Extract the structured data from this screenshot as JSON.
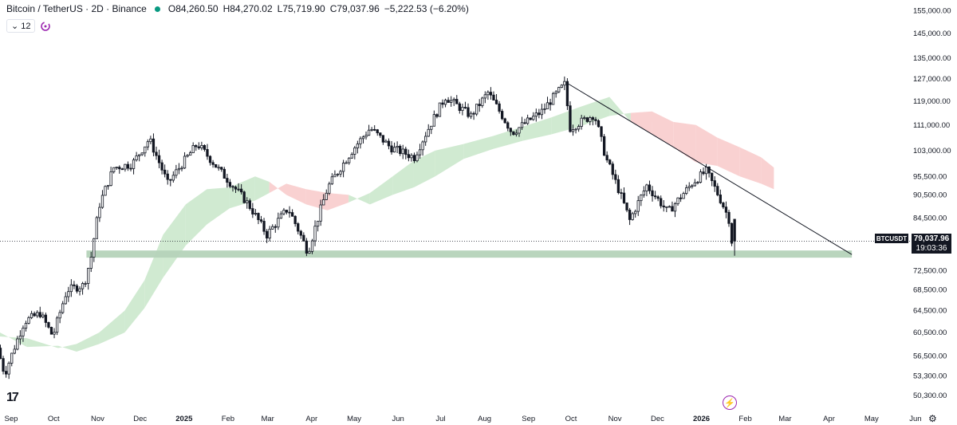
{
  "header": {
    "symbol": "Bitcoin / TetherUS · 2D · Binance",
    "open": "O84,260.50",
    "high": "H84,270.02",
    "low": "L75,719.90",
    "close": "C79,037.96",
    "change": "−5,222.53 (−6.20%)"
  },
  "indicator_toolbar": {
    "collapse_count": "12",
    "collapse_icon": "chevron-down-icon",
    "sync_icon": "refresh-icon"
  },
  "price_tag": {
    "symbol": "BTCUSDT",
    "price": "79,037.96",
    "countdown": "19:03:36"
  },
  "icons": {
    "logo": "tradingview-logo",
    "flash": "flash-icon",
    "settings": "gear-icon"
  },
  "colors": {
    "up": "#ffffff",
    "down": "#131722",
    "cloud_bull": "#c8e6c9",
    "cloud_bear": "#f8c9c9",
    "support_zone": "#b5d3b9",
    "trendline": "#131722",
    "accent": "#9c27b0"
  },
  "chart_data": {
    "type": "candlestick",
    "timeframe": "2D",
    "x_axis": {
      "tick_labels": [
        "Sep",
        "Oct",
        "Nov",
        "Dec",
        "2025",
        "Feb",
        "Mar",
        "Apr",
        "May",
        "Jun",
        "Jul",
        "Aug",
        "Sep",
        "Oct",
        "Nov",
        "Dec",
        "2026",
        "Feb",
        "Mar",
        "Apr",
        "May",
        "Jun"
      ],
      "range": [
        "2024-09-01",
        "2026-06-05"
      ]
    },
    "y_axis": {
      "scale": "log",
      "tick_labels": [
        "155,000.00",
        "145,000.00",
        "135,000.00",
        "127,000.00",
        "119,000.00",
        "111,000.00",
        "103,000.00",
        "95,500.00",
        "90,500.00",
        "84,500.00",
        "72,500.00",
        "68,500.00",
        "64,500.00",
        "60,500.00",
        "56,500.00",
        "53,300.00",
        "50,300.00"
      ],
      "ylim": [
        48700,
        160000
      ]
    },
    "price_anchors": [
      [
        "2024-09-01",
        57800
      ],
      [
        "2024-09-06",
        53500
      ],
      [
        "2024-09-20",
        62500
      ],
      [
        "2024-10-01",
        64000
      ],
      [
        "2024-10-10",
        59800
      ],
      [
        "2024-10-20",
        68500
      ],
      [
        "2024-11-01",
        69500
      ],
      [
        "2024-11-06",
        75500
      ],
      [
        "2024-11-12",
        88000
      ],
      [
        "2024-11-22",
        98000
      ],
      [
        "2024-12-05",
        99000
      ],
      [
        "2024-12-17",
        106500
      ],
      [
        "2024-12-30",
        93500
      ],
      [
        "2025-01-20",
        105000
      ],
      [
        "2025-02-05",
        97000
      ],
      [
        "2025-02-25",
        88000
      ],
      [
        "2025-03-10",
        80500
      ],
      [
        "2025-03-25",
        87000
      ],
      [
        "2025-04-08",
        76500
      ],
      [
        "2025-04-22",
        92500
      ],
      [
        "2025-05-10",
        103500
      ],
      [
        "2025-05-22",
        110000
      ],
      [
        "2025-06-05",
        104000
      ],
      [
        "2025-06-22",
        101000
      ],
      [
        "2025-07-14",
        120500
      ],
      [
        "2025-08-01",
        114000
      ],
      [
        "2025-08-13",
        122000
      ],
      [
        "2025-08-30",
        108500
      ],
      [
        "2025-09-20",
        115500
      ],
      [
        "2025-10-06",
        125000
      ],
      [
        "2025-10-10",
        110000
      ],
      [
        "2025-10-27",
        114500
      ],
      [
        "2025-11-04",
        101000
      ],
      [
        "2025-11-21",
        84000
      ],
      [
        "2025-12-03",
        93000
      ],
      [
        "2025-12-18",
        86000
      ],
      [
        "2026-01-05",
        94000
      ],
      [
        "2026-01-14",
        97000
      ],
      [
        "2026-01-25",
        88500
      ],
      [
        "2026-01-30",
        84260
      ],
      [
        "2026-02-01",
        79038
      ]
    ],
    "last_candle": {
      "open": 84260.5,
      "high": 84270.02,
      "low": 75719.9,
      "close": 79037.96
    },
    "ichimoku_cloud": [
      [
        "2024-09-01",
        60500,
        59800
      ],
      [
        "2024-09-20",
        58000,
        59500
      ],
      [
        "2024-10-12",
        58200,
        57800
      ],
      [
        "2024-10-25",
        57200,
        58500
      ],
      [
        "2024-11-10",
        58500,
        60500
      ],
      [
        "2024-11-28",
        60500,
        64500
      ],
      [
        "2024-12-12",
        65000,
        70500
      ],
      [
        "2024-12-25",
        71000,
        80500
      ],
      [
        "2025-01-10",
        78000,
        88000
      ],
      [
        "2025-01-25",
        83000,
        92000
      ],
      [
        "2025-02-10",
        87000,
        92500
      ],
      [
        "2025-02-28",
        89000,
        95500
      ],
      [
        "2025-03-10",
        91000,
        94000
      ],
      [
        "2025-03-22",
        93500,
        90500
      ],
      [
        "2025-04-05",
        92000,
        88000
      ],
      [
        "2025-04-20",
        91000,
        86500
      ],
      [
        "2025-05-05",
        90500,
        88500
      ],
      [
        "2025-05-20",
        88000,
        91000
      ],
      [
        "2025-06-05",
        90500,
        95500
      ],
      [
        "2025-06-20",
        92500,
        100000
      ],
      [
        "2025-07-05",
        95500,
        103000
      ],
      [
        "2025-07-25",
        100500,
        105000
      ],
      [
        "2025-08-15",
        103500,
        107500
      ],
      [
        "2025-09-05",
        106000,
        110500
      ],
      [
        "2025-09-25",
        108000,
        113500
      ],
      [
        "2025-10-15",
        110500,
        117000
      ],
      [
        "2025-11-05",
        114000,
        120500
      ],
      [
        "2025-11-20",
        115000,
        112000
      ],
      [
        "2025-12-05",
        115500,
        108000
      ],
      [
        "2025-12-20",
        112000,
        104000
      ],
      [
        "2026-01-05",
        111000,
        99500
      ],
      [
        "2026-01-20",
        107000,
        98500
      ],
      [
        "2026-02-05",
        104000,
        95500
      ],
      [
        "2026-02-20",
        101000,
        93500
      ],
      [
        "2026-03-01",
        98000,
        92000
      ]
    ],
    "trendline": {
      "from": [
        "2025-10-06",
        125500
      ],
      "to": [
        "2026-04-25",
        76000
      ]
    },
    "support_zone": {
      "from": "2024-11-01",
      "to": "2026-04-25",
      "low": 75300,
      "high": 76900
    },
    "last_price_line": 79037.96,
    "grid": false,
    "legend": "top-left"
  }
}
